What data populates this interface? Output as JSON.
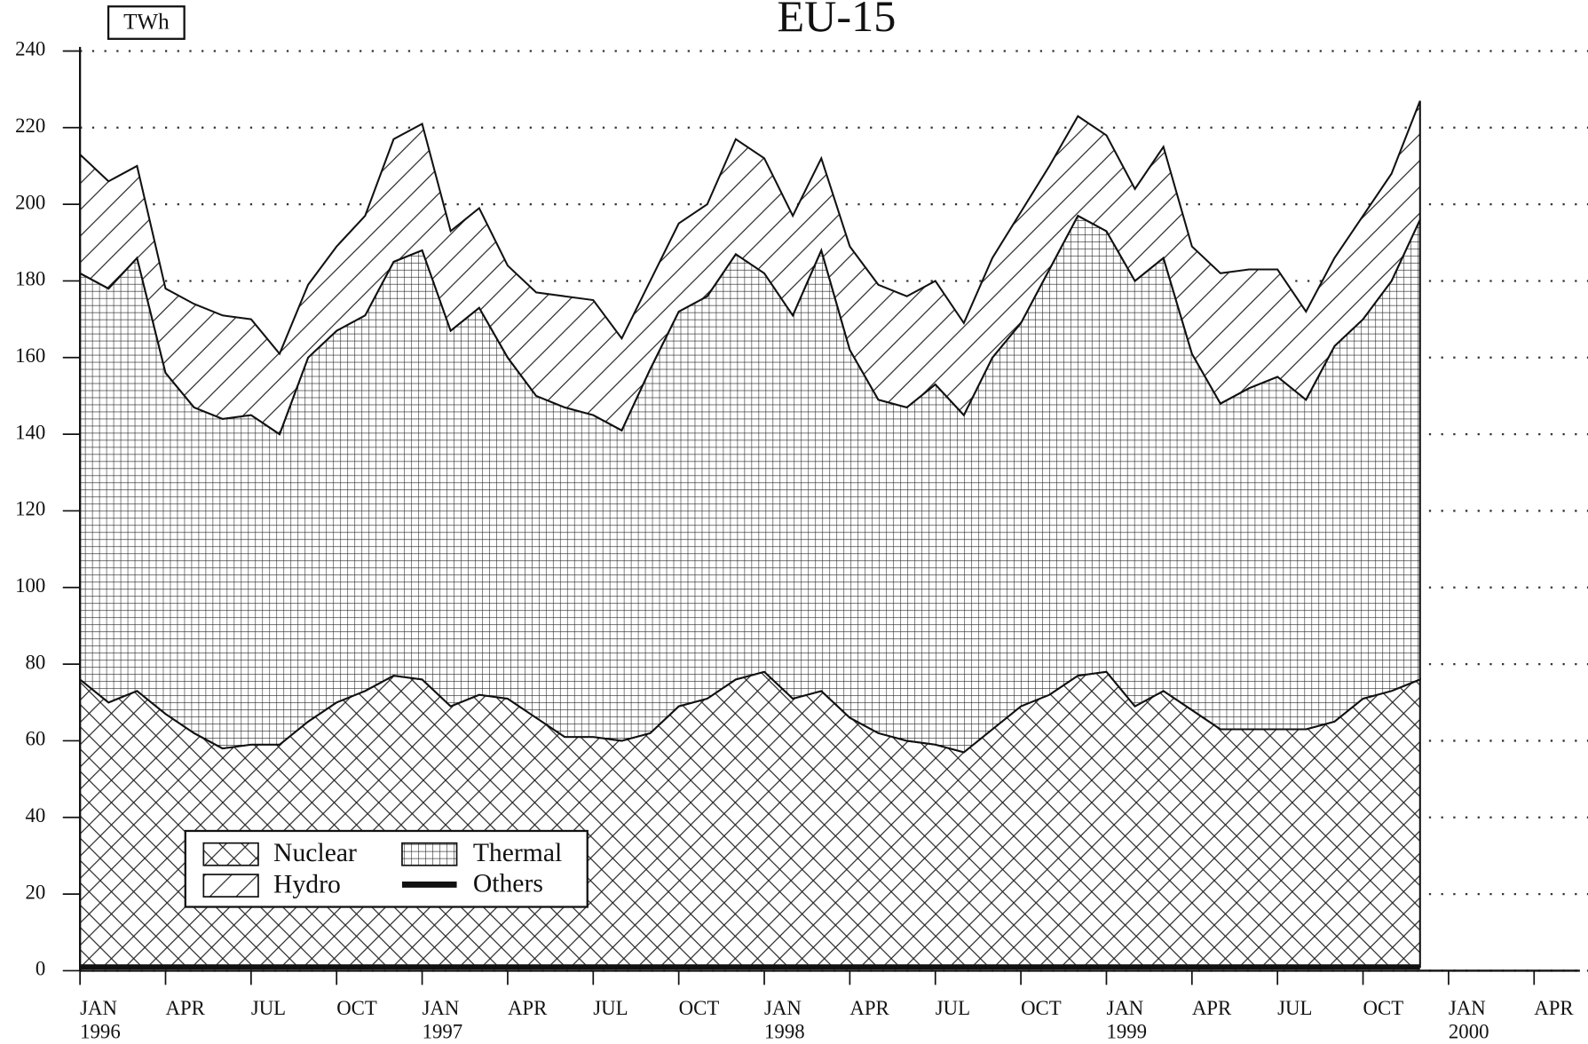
{
  "chart_data": {
    "type": "stacked_area",
    "title": "EU-15",
    "unit_label": "TWh",
    "x": [
      0,
      1,
      2,
      3,
      4,
      5,
      6,
      7,
      8,
      9,
      10,
      11,
      12,
      13,
      14,
      15,
      16,
      17,
      18,
      19,
      20,
      21,
      22,
      23,
      24,
      25,
      26,
      27,
      28,
      29,
      30,
      31,
      32,
      33,
      34,
      35,
      36,
      37,
      38,
      39,
      40,
      41,
      42,
      43,
      44,
      45,
      46,
      47
    ],
    "xlim": [
      0,
      52.5
    ],
    "xticks": [
      {
        "value": 0,
        "label": "JAN",
        "year": "1996"
      },
      {
        "value": 3,
        "label": "APR"
      },
      {
        "value": 6,
        "label": "JUL"
      },
      {
        "value": 9,
        "label": "OCT"
      },
      {
        "value": 12,
        "label": "JAN",
        "year": "1997"
      },
      {
        "value": 15,
        "label": "APR"
      },
      {
        "value": 18,
        "label": "JUL"
      },
      {
        "value": 21,
        "label": "OCT"
      },
      {
        "value": 24,
        "label": "JAN",
        "year": "1998"
      },
      {
        "value": 27,
        "label": "APR"
      },
      {
        "value": 30,
        "label": "JUL"
      },
      {
        "value": 33,
        "label": "OCT"
      },
      {
        "value": 36,
        "label": "JAN",
        "year": "1999"
      },
      {
        "value": 39,
        "label": "APR"
      },
      {
        "value": 42,
        "label": "JUL"
      },
      {
        "value": 45,
        "label": "OCT"
      },
      {
        "value": 48,
        "label": "JAN",
        "year": "2000"
      },
      {
        "value": 51,
        "label": "APR"
      }
    ],
    "ylim": [
      0,
      240
    ],
    "yticks": [
      0,
      20,
      40,
      60,
      80,
      100,
      120,
      140,
      160,
      180,
      200,
      220,
      240
    ],
    "grid": true,
    "legend": "lower left",
    "series": [
      {
        "name": "Others",
        "color": "#111111",
        "pattern": "solid",
        "values": [
          1,
          1,
          1,
          1,
          1,
          1,
          1,
          1,
          1,
          1,
          1,
          1,
          1,
          1,
          1,
          1,
          1,
          1,
          1,
          1,
          1,
          1,
          1,
          1,
          1,
          1,
          1,
          1,
          1,
          1,
          1,
          1,
          1,
          1,
          1,
          1,
          1,
          1,
          1,
          1,
          1,
          1,
          1,
          1,
          1,
          1,
          1,
          1
        ]
      },
      {
        "name": "Nuclear",
        "color": "#111111",
        "pattern": "crosshatch",
        "values": [
          75,
          69,
          72,
          66,
          61,
          57,
          58,
          58,
          64,
          69,
          72,
          76,
          75,
          68,
          71,
          70,
          65,
          60,
          60,
          59,
          61,
          68,
          70,
          75,
          77,
          70,
          72,
          65,
          61,
          59,
          58,
          56,
          62,
          68,
          71,
          76,
          77,
          68,
          72,
          67,
          62,
          62,
          62,
          62,
          64,
          70,
          72,
          75
        ]
      },
      {
        "name": "Thermal",
        "color": "#111111",
        "pattern": "grid",
        "values": [
          106,
          108,
          113,
          89,
          85,
          86,
          86,
          81,
          95,
          97,
          98,
          108,
          112,
          98,
          101,
          89,
          84,
          86,
          84,
          81,
          95,
          103,
          105,
          111,
          104,
          100,
          115,
          96,
          87,
          87,
          94,
          88,
          97,
          100,
          111,
          120,
          115,
          111,
          113,
          93,
          85,
          89,
          92,
          86,
          98,
          99,
          107,
          120
        ]
      },
      {
        "name": "Hydro",
        "color": "#111111",
        "pattern": "diagonal",
        "values": [
          31,
          28,
          24,
          22,
          27,
          27,
          25,
          21,
          19,
          22,
          26,
          32,
          33,
          26,
          26,
          24,
          27,
          29,
          30,
          24,
          23,
          23,
          24,
          30,
          30,
          26,
          24,
          27,
          30,
          29,
          27,
          24,
          26,
          29,
          27,
          26,
          25,
          24,
          29,
          28,
          34,
          31,
          28,
          23,
          23,
          27,
          28,
          31
        ]
      }
    ]
  }
}
